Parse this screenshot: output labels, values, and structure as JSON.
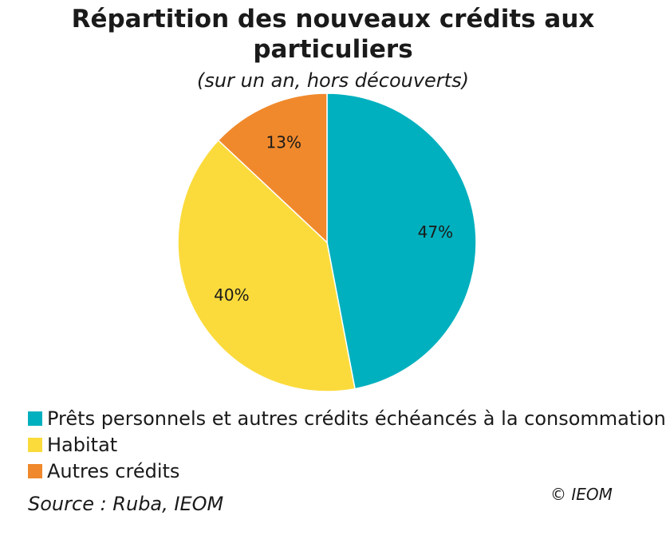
{
  "chart_data": {
    "type": "pie",
    "title_line1": "Répartition des nouveaux crédits aux",
    "title_line2": "particuliers",
    "subtitle": "(sur un an, hors découverts)",
    "slices": [
      {
        "name": "Prêts personnels et autres crédits échéancés à la consommation",
        "value": 47,
        "label": "47%",
        "color": "#00B0BE"
      },
      {
        "name": "Habitat",
        "value": 40,
        "label": "40%",
        "color": "#FBDB3C"
      },
      {
        "name": "Autres crédits",
        "value": 13,
        "label": "13%",
        "color": "#F0892C"
      }
    ],
    "legend_position": "bottom-left"
  },
  "footer": {
    "source": "Source : Ruba, IEOM",
    "copyright": "© IEOM"
  }
}
